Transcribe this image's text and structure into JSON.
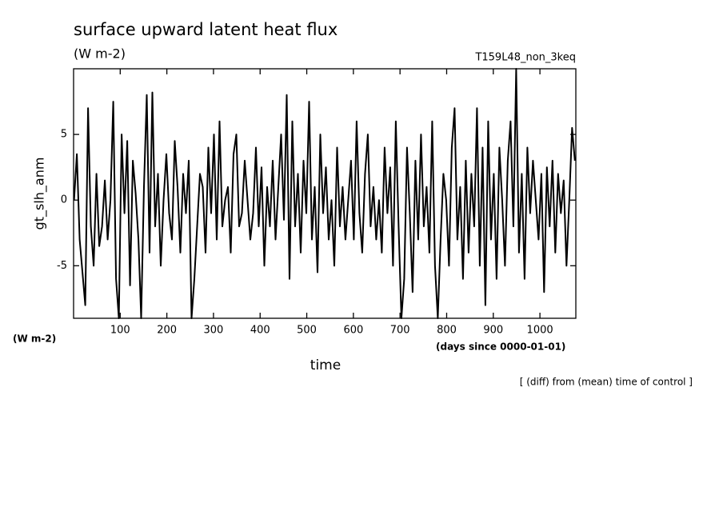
{
  "chart_data": {
    "type": "line",
    "title": "surface upward latent heat flux",
    "subtitle": "(W m-2)",
    "run_label": "T159L48_non_3keq",
    "y_label": "gt_slh_anm",
    "y_units": "(W m-2)",
    "x_label": "time",
    "x_units": "(days since 0000-01-01)",
    "note": "[ (diff) from (mean) time of control ]",
    "xlim": [
      0,
      1077
    ],
    "ylim": [
      -9,
      10
    ],
    "xticks": [
      100,
      200,
      300,
      400,
      500,
      600,
      700,
      800,
      900,
      1000
    ],
    "yticks": [
      -5,
      0,
      5
    ],
    "x": [
      1,
      7,
      13,
      19,
      25,
      31,
      37,
      43,
      49,
      55,
      61,
      67,
      73,
      79,
      85,
      91,
      97,
      103,
      109,
      115,
      121,
      127,
      133,
      139,
      145,
      151,
      157,
      163,
      169,
      175,
      181,
      187,
      193,
      199,
      205,
      211,
      217,
      223,
      229,
      235,
      241,
      247,
      253,
      259,
      265,
      271,
      277,
      283,
      289,
      295,
      301,
      307,
      313,
      319,
      325,
      331,
      337,
      343,
      349,
      355,
      361,
      367,
      373,
      379,
      385,
      391,
      397,
      403,
      409,
      415,
      421,
      427,
      433,
      439,
      445,
      451,
      457,
      463,
      469,
      475,
      481,
      487,
      493,
      499,
      505,
      511,
      517,
      523,
      529,
      535,
      541,
      547,
      553,
      559,
      565,
      571,
      577,
      583,
      589,
      595,
      601,
      607,
      613,
      619,
      625,
      631,
      637,
      643,
      649,
      655,
      661,
      667,
      673,
      679,
      685,
      691,
      697,
      703,
      709,
      715,
      721,
      727,
      733,
      739,
      745,
      751,
      757,
      763,
      769,
      775,
      781,
      787,
      793,
      799,
      805,
      811,
      817,
      823,
      829,
      835,
      841,
      847,
      853,
      859,
      865,
      871,
      877,
      883,
      889,
      895,
      901,
      907,
      913,
      919,
      925,
      931,
      937,
      943,
      949,
      955,
      961,
      967,
      973,
      979,
      985,
      991,
      997,
      1003,
      1009,
      1015,
      1021,
      1027,
      1033,
      1039,
      1045,
      1051,
      1057,
      1063,
      1069,
      1075
    ],
    "series": [
      {
        "color": "#000000",
        "values": [
          0,
          3.5,
          -3,
          -5.5,
          -8,
          7,
          -2,
          -5,
          2,
          -3.5,
          -2,
          1.5,
          -3,
          0,
          7.5,
          -6,
          -9,
          5,
          -1,
          4.5,
          -6.5,
          3,
          0.5,
          -3,
          -9,
          1,
          8,
          -4,
          8.2,
          -2,
          2,
          -5,
          0,
          3.5,
          -1,
          -3,
          4.5,
          1,
          -4,
          2,
          -1,
          3,
          -9,
          -6,
          -2,
          2,
          1,
          -4,
          4,
          -1,
          5,
          -3,
          6,
          -2,
          0,
          1,
          -4,
          3.5,
          5,
          -2,
          -1,
          3,
          0,
          -3,
          -1,
          4,
          -2,
          2.5,
          -5,
          1,
          -2,
          3,
          -3,
          1,
          5,
          -1.5,
          8,
          -6,
          6,
          -2,
          2,
          -4,
          3,
          -1,
          7.5,
          -3,
          1,
          -5.5,
          5,
          -1,
          2.5,
          -3,
          0,
          -5,
          4,
          -2,
          1,
          -3,
          0,
          3,
          -3,
          6,
          -1,
          -4,
          2,
          5,
          -2,
          1,
          -3,
          0,
          -4,
          4,
          -1,
          2.5,
          -5,
          6,
          -2,
          -9,
          -6,
          4,
          -1,
          -7,
          3,
          -3,
          5,
          -2,
          1,
          -4,
          6,
          -5,
          -9,
          -3,
          2,
          0,
          -5,
          4,
          7,
          -3,
          1,
          -6,
          3,
          -4,
          2,
          -2,
          7,
          -5,
          4,
          -8,
          6,
          -3,
          2,
          -6,
          4,
          0,
          -5,
          3,
          6,
          -2,
          10,
          -4,
          2,
          -6,
          4,
          -1,
          3,
          0,
          -3,
          2,
          -7,
          2.5,
          -2,
          3,
          -4,
          2,
          -1,
          1.5,
          -5,
          0,
          5.5,
          3
        ]
      }
    ]
  }
}
